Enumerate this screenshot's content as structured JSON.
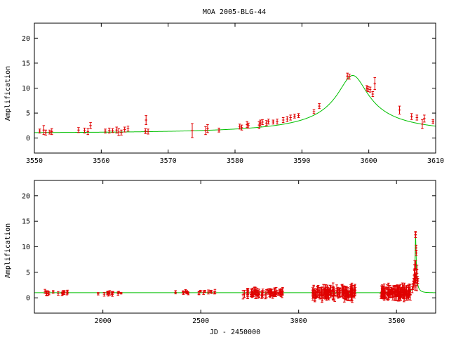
{
  "colors": {
    "model": "#00c000",
    "data": "#e00000",
    "axis": "#000000"
  },
  "chart_data": [
    {
      "type": "scatter",
      "title": "MOA 2005-BLG-44",
      "xlabel": "",
      "ylabel": "Amplification",
      "xlim": [
        3550,
        3610
      ],
      "ylim": [
        -3,
        23
      ],
      "xticks": [
        3550,
        3560,
        3570,
        3580,
        3590,
        3600,
        3610
      ],
      "yticks": [
        0,
        5,
        10,
        15,
        20
      ],
      "grid": false,
      "model": {
        "t0": 3597.6,
        "u0": 0.08,
        "tE": 28
      },
      "points": [
        [
          3550.8,
          1.4,
          0.4
        ],
        [
          3551.4,
          1.6,
          0.9
        ],
        [
          3551.7,
          1.1,
          0.5
        ],
        [
          3552.3,
          1.2,
          0.4
        ],
        [
          3552.6,
          1.3,
          0.6
        ],
        [
          3556.6,
          1.6,
          0.5
        ],
        [
          3557.5,
          1.5,
          0.5
        ],
        [
          3558.0,
          1.3,
          0.6
        ],
        [
          3558.4,
          2.5,
          0.6
        ],
        [
          3560.6,
          1.4,
          0.4
        ],
        [
          3561.2,
          1.5,
          0.5
        ],
        [
          3561.7,
          1.5,
          0.4
        ],
        [
          3562.3,
          1.6,
          0.6
        ],
        [
          3562.6,
          1.2,
          0.7
        ],
        [
          3563.0,
          1.1,
          0.5
        ],
        [
          3563.5,
          1.7,
          0.5
        ],
        [
          3564.0,
          1.9,
          0.5
        ],
        [
          3566.6,
          1.4,
          0.5
        ],
        [
          3566.7,
          3.6,
          0.9
        ],
        [
          3567.0,
          1.3,
          0.5
        ],
        [
          3573.6,
          1.5,
          1.4
        ],
        [
          3575.6,
          1.5,
          0.8
        ],
        [
          3575.9,
          1.9,
          0.8
        ],
        [
          3577.6,
          1.6,
          0.4
        ],
        [
          3580.7,
          2.3,
          0.5
        ],
        [
          3581.0,
          2.1,
          0.5
        ],
        [
          3581.8,
          2.7,
          0.6
        ],
        [
          3582.0,
          2.5,
          0.5
        ],
        [
          3583.6,
          2.6,
          0.7
        ],
        [
          3583.8,
          3.0,
          0.6
        ],
        [
          3584.1,
          3.2,
          0.5
        ],
        [
          3584.7,
          3.0,
          0.5
        ],
        [
          3585.0,
          3.3,
          0.5
        ],
        [
          3585.7,
          3.2,
          0.4
        ],
        [
          3586.3,
          3.3,
          0.5
        ],
        [
          3587.2,
          3.6,
          0.5
        ],
        [
          3587.8,
          3.8,
          0.5
        ],
        [
          3588.3,
          4.1,
          0.5
        ],
        [
          3588.9,
          4.4,
          0.4
        ],
        [
          3589.5,
          4.5,
          0.4
        ],
        [
          3591.8,
          5.3,
          0.4
        ],
        [
          3592.6,
          6.4,
          0.5
        ],
        [
          3596.8,
          12.4,
          0.6
        ],
        [
          3597.1,
          12.3,
          0.5
        ],
        [
          3599.7,
          10.0,
          0.5
        ],
        [
          3599.9,
          9.8,
          0.5
        ],
        [
          3600.2,
          9.7,
          0.5
        ],
        [
          3600.6,
          8.8,
          0.5
        ],
        [
          3600.9,
          10.9,
          1.2
        ],
        [
          3604.6,
          5.6,
          0.8
        ],
        [
          3606.4,
          4.3,
          0.6
        ],
        [
          3607.2,
          4.1,
          0.5
        ],
        [
          3608.0,
          2.8,
          0.9
        ],
        [
          3608.3,
          3.9,
          0.7
        ],
        [
          3609.6,
          3.3,
          0.4
        ]
      ]
    },
    {
      "type": "scatter",
      "title": "",
      "xlabel": "JD - 2450000",
      "ylabel": "Amplification",
      "xlim": [
        1650,
        3700
      ],
      "ylim": [
        -3,
        23
      ],
      "xticks": [
        2000,
        2500,
        3000,
        3500
      ],
      "yticks": [
        0,
        5,
        10,
        15,
        20
      ],
      "grid": false,
      "model": {
        "t0": 3597.6,
        "u0": 0.08,
        "tE": 28
      },
      "clusters": [
        {
          "start": 1680,
          "end": 1820,
          "n": 14,
          "mean": 1.0,
          "spread": 0.35,
          "err": 0.35
        },
        {
          "start": 1975,
          "end": 2100,
          "n": 12,
          "mean": 0.95,
          "spread": 0.35,
          "err": 0.35
        },
        {
          "start": 2355,
          "end": 2440,
          "n": 8,
          "mean": 1.05,
          "spread": 0.3,
          "err": 0.3
        },
        {
          "start": 2490,
          "end": 2590,
          "n": 10,
          "mean": 1.05,
          "spread": 0.3,
          "err": 0.3
        },
        {
          "start": 2715,
          "end": 2920,
          "n": 70,
          "mean": 1.0,
          "spread": 0.5,
          "err": 0.6
        },
        {
          "start": 3070,
          "end": 3290,
          "n": 130,
          "mean": 1.0,
          "spread": 0.7,
          "err": 0.9
        },
        {
          "start": 3420,
          "end": 3575,
          "n": 100,
          "mean": 1.0,
          "spread": 0.7,
          "err": 1.0
        }
      ],
      "peak_points": [
        [
          3580,
          1.6,
          0.6
        ],
        [
          3584,
          2.2,
          0.6
        ],
        [
          3586,
          2.6,
          0.7
        ],
        [
          3588,
          3.1,
          0.7
        ],
        [
          3590,
          3.6,
          0.8
        ],
        [
          3591,
          4.6,
          1.0
        ],
        [
          3592,
          5.3,
          1.2
        ],
        [
          3593,
          6.5,
          0.8
        ],
        [
          3594,
          3.4,
          1.3
        ],
        [
          3595,
          4.2,
          1.3
        ],
        [
          3596,
          3.0,
          1.5
        ],
        [
          3597,
          12.4,
          0.6
        ],
        [
          3597.5,
          12.3,
          0.5
        ],
        [
          3598,
          6.5,
          0.8
        ],
        [
          3599,
          3.9,
          1.0
        ],
        [
          3600,
          9.8,
          0.5
        ],
        [
          3601,
          8.8,
          0.5
        ],
        [
          3602,
          4.6,
          0.9
        ],
        [
          3604,
          2.4,
          1.0
        ],
        [
          3605,
          5.6,
          0.8
        ],
        [
          3607,
          3.5,
          0.7
        ],
        [
          3609,
          3.3,
          0.5
        ]
      ]
    }
  ]
}
